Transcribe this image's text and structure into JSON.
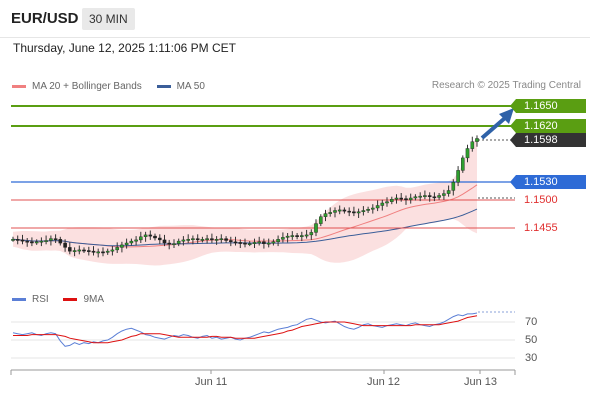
{
  "header": {
    "symbol": "EUR/USD",
    "timeframe": "30 MIN",
    "datetime": "Thursday, June 12, 2025 1:11:06 PM CET"
  },
  "legend": {
    "ma20": "MA 20 + Bollinger Bands",
    "ma50": "MA 50",
    "ma20_color": "#f08080",
    "ma50_color": "#3b5e99",
    "research": "Research © 2025 Trading Central"
  },
  "levels": {
    "r2": "1.1650",
    "r1": "1.1620",
    "last": "1.1598",
    "pivot": "1.1530",
    "s1": "1.1500",
    "s2": "1.1455",
    "green": "#5a9e12",
    "blue": "#2e6bd6",
    "red": "#e03030",
    "dark": "#333333"
  },
  "rsi_legend": {
    "rsi": "RSI",
    "ma9": "9MA",
    "rsi_color": "#5b7fd6",
    "ma9_color": "#dd1111"
  },
  "rsi_ticks": [
    "70",
    "50",
    "30"
  ],
  "dates": [
    "Jun 11",
    "Jun 12",
    "Jun 13"
  ],
  "chart_data": {
    "type": "candlestick",
    "title": "",
    "price_levels": {
      "resistance": [
        1.165,
        1.162
      ],
      "last": 1.1598,
      "pivot": 1.153,
      "support": [
        1.15,
        1.1455
      ]
    },
    "rsi_levels": [
      70,
      50,
      30
    ],
    "x_labels": [
      "Jun 11",
      "Jun 12",
      "Jun 13"
    ],
    "bias": "bullish",
    "close_series": [
      1.1437,
      1.1436,
      1.1434,
      1.1433,
      1.1432,
      1.1433,
      1.1434,
      1.1435,
      1.1438,
      1.1437,
      1.1431,
      1.1424,
      1.1418,
      1.1419,
      1.142,
      1.1419,
      1.1418,
      1.1416,
      1.1417,
      1.1416,
      1.1418,
      1.142,
      1.1424,
      1.1428,
      1.1431,
      1.1434,
      1.1436,
      1.1441,
      1.1444,
      1.1442,
      1.1439,
      1.1436,
      1.1431,
      1.1429,
      1.143,
      1.1434,
      1.1436,
      1.1437,
      1.1438,
      1.1436,
      1.1437,
      1.1438,
      1.1436,
      1.1437,
      1.1438,
      1.1435,
      1.1433,
      1.1432,
      1.1431,
      1.143,
      1.143,
      1.1432,
      1.1433,
      1.143,
      1.1431,
      1.1433,
      1.1437,
      1.144,
      1.1442,
      1.1443,
      1.1441,
      1.1443,
      1.1444,
      1.1448,
      1.1462,
      1.1473,
      1.1478,
      1.148,
      1.1483,
      1.1484,
      1.1482,
      1.1481,
      1.1479,
      1.1481,
      1.1483,
      1.1485,
      1.1487,
      1.1491,
      1.1495,
      1.1497,
      1.1501,
      1.1503,
      1.1502,
      1.15,
      1.1503,
      1.1505,
      1.1506,
      1.1507,
      1.1505,
      1.1504,
      1.1507,
      1.151,
      1.1515,
      1.1528,
      1.1547,
      1.1567,
      1.1582,
      1.1593,
      1.1598
    ],
    "rsi_series": [
      58,
      57,
      56,
      57,
      58,
      56,
      55,
      57,
      58,
      57,
      49,
      43,
      44,
      47,
      45,
      47,
      46,
      48,
      47,
      49,
      50,
      53,
      57,
      60,
      62,
      63,
      61,
      59,
      56,
      55,
      53,
      52,
      51,
      53,
      55,
      54,
      56,
      55,
      53,
      52,
      54,
      55,
      52,
      53,
      51,
      52,
      53,
      51,
      50,
      52,
      53,
      55,
      57,
      59,
      58,
      60,
      62,
      63,
      64,
      66,
      67,
      70,
      73,
      74,
      72,
      70,
      69,
      70,
      71,
      68,
      65,
      63,
      62,
      64,
      67,
      68,
      66,
      65,
      64,
      66,
      67,
      68,
      67,
      66,
      68,
      69,
      67,
      66,
      65,
      67,
      68,
      70,
      73,
      76,
      78,
      77,
      79,
      79,
      80
    ],
    "rsi_ma9_series": [
      55,
      55,
      55,
      55,
      56,
      56,
      56,
      56,
      56,
      56,
      55,
      54,
      52,
      51,
      50,
      49,
      48,
      47,
      47,
      47,
      47,
      48,
      49,
      50,
      52,
      54,
      55,
      57,
      57,
      57,
      57,
      57,
      56,
      55,
      54,
      53,
      53,
      53,
      53,
      53,
      53,
      53,
      54,
      54,
      53,
      53,
      53,
      52,
      52,
      52,
      52,
      52,
      53,
      54,
      55,
      56,
      57,
      58,
      60,
      61,
      63,
      65,
      66,
      67,
      68,
      69,
      70,
      70,
      70,
      70,
      70,
      69,
      68,
      67,
      66,
      66,
      66,
      66,
      66,
      66,
      66,
      66,
      66,
      66,
      66,
      67,
      67,
      67,
      67,
      67,
      67,
      68,
      69,
      70,
      71,
      73,
      75,
      76,
      77
    ]
  }
}
